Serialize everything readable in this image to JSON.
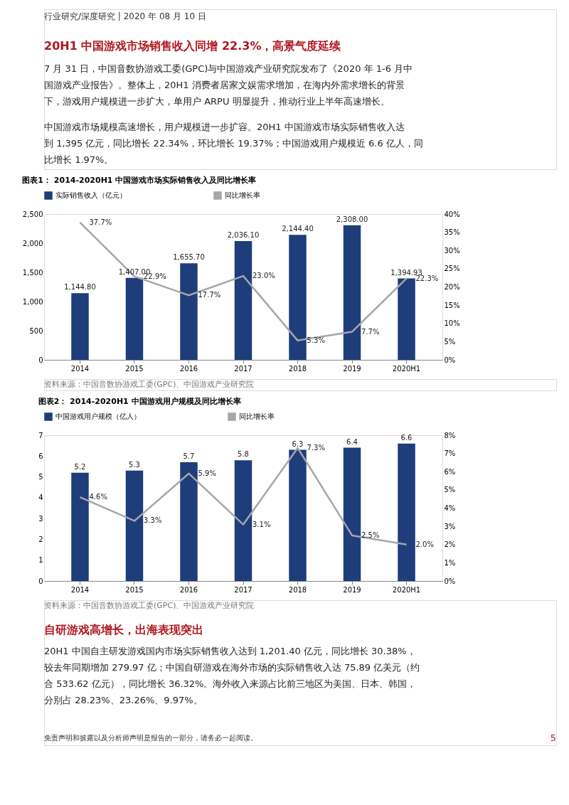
{
  "chart_data": [
    {
      "type": "bar",
      "title": "图表1：  2014-2020H1 中国游戏市场实际销售收入及同比增长率",
      "categories": [
        "2014",
        "2015",
        "2016",
        "2017",
        "2018",
        "2019",
        "2020H1"
      ],
      "series": [
        {
          "name": "实际销售收入（亿元）",
          "color": "#1f3d7a",
          "values": [
            1144.8,
            1407.0,
            1655.7,
            2036.1,
            2144.4,
            2308.0,
            1394.93
          ],
          "value_labels": [
            "1,144.80",
            "1,407.00",
            "1,655.70",
            "2,036.10",
            "2,144.40",
            "2,308.00",
            "1,394.93"
          ]
        },
        {
          "name": "同比增长率",
          "type": "line",
          "axis": "y2",
          "color": "#a6a6a6",
          "values": [
            37.7,
            22.9,
            17.7,
            23.0,
            5.3,
            7.7,
            22.3
          ],
          "value_labels": [
            "37.7%",
            "22.9%",
            "17.7%",
            "23.0%",
            "5.3%",
            "7.7%",
            "22.3%"
          ]
        }
      ],
      "ylim": [
        0,
        2500
      ],
      "yticks": [
        0,
        500,
        {
          "value": 1000,
          "label": "1,000"
        },
        {
          "value": 1500,
          "label": "1,500"
        },
        {
          "value": 2000,
          "label": "2,000"
        },
        {
          "value": 2500,
          "label": "2,500"
        }
      ],
      "y2lim": [
        0,
        40
      ],
      "y2ticks": [
        {
          "value": 0,
          "label": "0%"
        },
        {
          "value": 5,
          "label": "5%"
        },
        {
          "value": 10,
          "label": "10%"
        },
        {
          "value": 15,
          "label": "15%"
        },
        {
          "value": 20,
          "label": "20%"
        },
        {
          "value": 25,
          "label": "25%"
        },
        {
          "value": 30,
          "label": "30%"
        },
        {
          "value": 35,
          "label": "35%"
        },
        {
          "value": 40,
          "label": "40%"
        }
      ],
      "legend": "top",
      "annotations": [
        "行业研究/深度研究  | 2020 年 08 月 10 日",
        "20H1 中国游戏市场销售收入同增 22.3%，高景气度延续",
        "7 月 31 日，中国音数协游戏工委(GPC)与中国游戏产业研究院发布了《2020 年 1-6 月中",
        "国游戏产业报告》。整体上，20H1 消费者居家文娱需求增加，在海内外需求增长的背景",
        "下，游戏用户规模进一步扩大，单用户 ARPU 明显提升，推动行业上半年高速增长。",
        "中国游戏市场规模高速增长，用户规模进一步扩容。20H1 中国游戏市场实际销售收入达",
        "到 1,395 亿元，同比增长 22.34%，环比增长 19.37%；中国游戏用户规模近 6.6 亿人，同",
        "比增长 1.97%。",
        "资料来源：中国音数协游戏工委(GPC)、中国游戏产业研究院"
      ]
    },
    {
      "type": "bar",
      "title": "图表2：  2014-2020H1 中国游戏用户规模及同比增长率",
      "categories": [
        "2014",
        "2015",
        "2016",
        "2017",
        "2018",
        "2019",
        "2020H1"
      ],
      "series": [
        {
          "name": "中国游戏用户规模（亿人）",
          "color": "#1f3d7a",
          "values": [
            5.2,
            5.3,
            5.7,
            5.8,
            6.3,
            6.4,
            6.6
          ],
          "value_labels": [
            "5.2",
            "5.3",
            "5.7",
            "5.8",
            "6.3",
            "6.4",
            "6.6"
          ]
        },
        {
          "name": "同比增长率",
          "type": "line",
          "axis": "y2",
          "color": "#a6a6a6",
          "values": [
            4.6,
            3.3,
            5.9,
            3.1,
            7.3,
            2.5,
            2.0
          ],
          "value_labels": [
            "4.6%",
            "3.3%",
            "5.9%",
            "3.1%",
            "7.3%",
            "2.5%",
            "2.0%"
          ]
        }
      ],
      "ylim": [
        0,
        7
      ],
      "yticks": [
        0,
        1,
        2,
        3,
        4,
        5,
        6,
        7
      ],
      "y2lim": [
        0,
        8
      ],
      "y2ticks": [
        {
          "value": 0,
          "label": "0%"
        },
        {
          "value": 1,
          "label": "1%"
        },
        {
          "value": 2,
          "label": "2%"
        },
        {
          "value": 3,
          "label": "3%"
        },
        {
          "value": 4,
          "label": "4%"
        },
        {
          "value": 5,
          "label": "5%"
        },
        {
          "value": 6,
          "label": "6%"
        },
        {
          "value": 7,
          "label": "7%"
        },
        {
          "value": 8,
          "label": "8%"
        }
      ],
      "legend": "top",
      "annotations": [
        "资料来源：中国音数协游戏工委(GPC)、中国游戏产业研究院",
        "自研游戏高增长，出海表现突出",
        "20H1 中国自主研发游戏国内市场实际销售收入达到 1,201.40 亿元，同比增长 30.38%，",
        "较去年同期增加 279.97 亿；中国自研游戏在海外市场的实际销售收入达 75.89 亿美元（约",
        "合 533.62 亿元），同比增长 36.32%。海外收入来源占比前三地区为美国、日本、韩国，",
        "分别占 28.23%、23.26%、9.97%。",
        "免责声明和披露以及分析师声明是报告的一部分，请务必一起阅读。",
        "5"
      ]
    }
  ]
}
